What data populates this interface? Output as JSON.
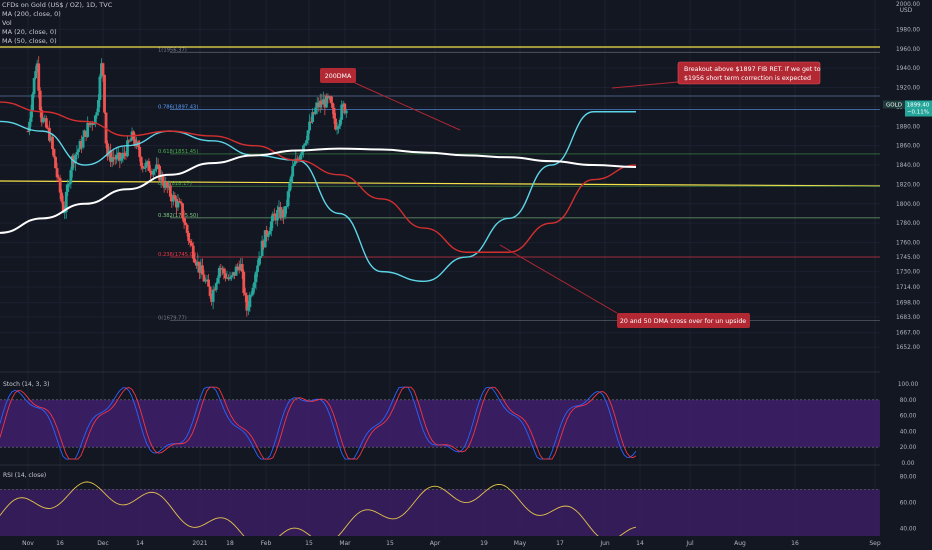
{
  "header": {
    "symbol": "CFDs on Gold (US$ / OZ), 1D, TVC",
    "indicators": [
      "MA (200, close, 0)",
      "Vol",
      "MA (20, close, 0)",
      "MA (50, close, 0)"
    ],
    "currency_top": "2000.00",
    "currency_unit": "USD"
  },
  "price_axis": {
    "labels": [
      "1980.00",
      "1960.00",
      "1940.00",
      "1920.00",
      "1900.00",
      "1880.00",
      "1860.00",
      "1840.00",
      "1820.00",
      "1800.00",
      "1780.00",
      "1760.00",
      "1745.00",
      "1730.00",
      "1714.00",
      "1698.00",
      "1683.00",
      "1667.00",
      "1652.00"
    ]
  },
  "price_tag": {
    "label": "GOLD",
    "price": "1899.40",
    "change": "−0.11%",
    "color": "#26a69a"
  },
  "time_axis": {
    "labels": [
      "Nov",
      "16",
      "Dec",
      "14",
      "2021",
      "18",
      "Feb",
      "15",
      "Mar",
      "15",
      "Apr",
      "19",
      "May",
      "17",
      "Jun",
      "14",
      "Jul",
      "Aug",
      "16",
      "Sep"
    ]
  },
  "fib_levels": [
    {
      "label": "1(1956.37)",
      "value": 1956.37,
      "color": "#787b86"
    },
    {
      "label": "0.786(1897.43)",
      "value": 1897.43,
      "color": "#5b9cf6"
    },
    {
      "label": "0.618(1851.45)",
      "value": 1851.45,
      "color": "#4caf50"
    },
    {
      "label": "0.5(1818.17)",
      "value": 1818.17,
      "color": "#4caf50"
    },
    {
      "label": "0.382(1785.50)",
      "value": 1785.5,
      "color": "#81c784"
    },
    {
      "label": "0.236(1745.09)",
      "value": 1745.09,
      "color": "#f23645"
    },
    {
      "label": "0(1679.77)",
      "value": 1679.77,
      "color": "#787b86"
    }
  ],
  "annotations": {
    "breakout": "Breakout above $1897 FIB RET. If we get to $1956 short term correction is expected",
    "dma200": "200DMA",
    "cross": "20 and 50 DMA cross over for un upside"
  },
  "stoch": {
    "title": "Stoch (14, 3, 3)",
    "axis": [
      "100.00",
      "80.00",
      "60.00",
      "40.00",
      "20.00",
      "0.00"
    ]
  },
  "rsi": {
    "title": "RSI (14, close)",
    "axis": [
      "80.00",
      "60.00",
      "40.00"
    ]
  },
  "colors": {
    "bg": "#131722",
    "up": "#26a69a",
    "down": "#ef5350",
    "ma20": "#5dd5e8",
    "ma50": "#d32f2f",
    "ma200": "#ffffff",
    "yellow": "#f5e14a",
    "stochK": "#2962ff",
    "stochD": "#f23645",
    "rsi": "#e4c34b",
    "band": "#3f1f6b"
  },
  "chart_data": {
    "type": "line",
    "title": "CFDs on Gold (US$ / OZ), 1D, TVC",
    "xlabel": "",
    "ylabel": "",
    "x": [
      "Nov",
      "Nov 16",
      "Dec",
      "Dec 14",
      "2021",
      "Jan 18",
      "Feb",
      "Feb 15",
      "Mar",
      "Mar 15",
      "Apr",
      "Apr 19",
      "May",
      "May 17",
      "Jun",
      "Jun 14"
    ],
    "ylim": [
      1645,
      2000
    ],
    "series": [
      {
        "name": "MA (20, close, 0)",
        "values": [
          1885,
          1875,
          1840,
          1860,
          1875,
          1865,
          1850,
          1845,
          1790,
          1730,
          1720,
          1745,
          1785,
          1840,
          1895,
          1895
        ]
      },
      {
        "name": "MA (50, close, 0)",
        "values": [
          1905,
          1895,
          1885,
          1870,
          1875,
          1870,
          1860,
          1845,
          1830,
          1805,
          1775,
          1750,
          1750,
          1780,
          1825,
          1840
        ]
      },
      {
        "name": "MA (200, close, 0)",
        "values": [
          1770,
          1785,
          1800,
          1815,
          1830,
          1842,
          1850,
          1855,
          1857,
          1856,
          1853,
          1850,
          1848,
          1844,
          1840,
          1838
        ]
      }
    ]
  }
}
